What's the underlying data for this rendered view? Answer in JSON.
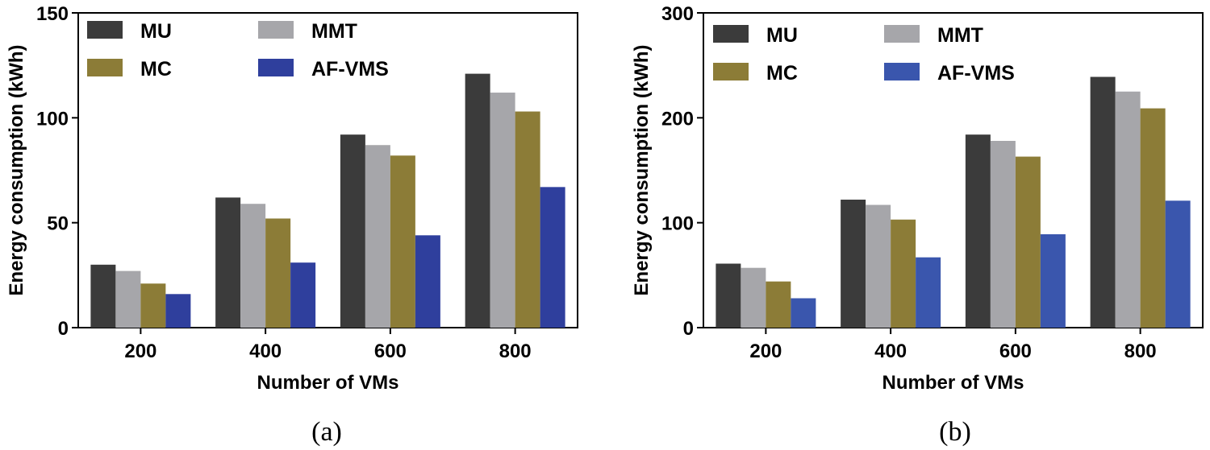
{
  "chart_data": [
    {
      "id": "a",
      "type": "bar",
      "caption": "(a)",
      "xlabel": "Number of VMs",
      "ylabel": "Energy consumption (kWh)",
      "ylim": [
        0,
        150
      ],
      "yticks": [
        0,
        50,
        100,
        150
      ],
      "categories": [
        "200",
        "400",
        "600",
        "800"
      ],
      "legend_position": "top-left, two columns",
      "series": [
        {
          "name": "MU",
          "color": "#3b3b3b",
          "values": [
            30,
            62,
            92,
            121
          ]
        },
        {
          "name": "MMT",
          "color": "#a6a6aa",
          "values": [
            27,
            59,
            87,
            112
          ]
        },
        {
          "name": "MC",
          "color": "#8c7c37",
          "values": [
            21,
            52,
            82,
            103
          ]
        },
        {
          "name": "AF-VMS",
          "color": "#2f3f9d",
          "values": [
            16,
            31,
            44,
            67
          ]
        }
      ]
    },
    {
      "id": "b",
      "type": "bar",
      "caption": "(b)",
      "xlabel": "Number of VMs",
      "ylabel": "Energy consumption (kWh)",
      "ylim": [
        0,
        300
      ],
      "yticks": [
        0,
        100,
        200,
        300
      ],
      "categories": [
        "200",
        "400",
        "600",
        "800"
      ],
      "legend_position": "top-left, two columns",
      "series": [
        {
          "name": "MU",
          "color": "#3b3b3b",
          "values": [
            61,
            122,
            184,
            239
          ]
        },
        {
          "name": "MMT",
          "color": "#a6a6aa",
          "values": [
            57,
            117,
            178,
            225
          ]
        },
        {
          "name": "MC",
          "color": "#8c7c37",
          "values": [
            44,
            103,
            163,
            209
          ]
        },
        {
          "name": "AF-VMS",
          "color": "#3a56ad",
          "values": [
            28,
            67,
            89,
            121
          ]
        }
      ]
    }
  ]
}
